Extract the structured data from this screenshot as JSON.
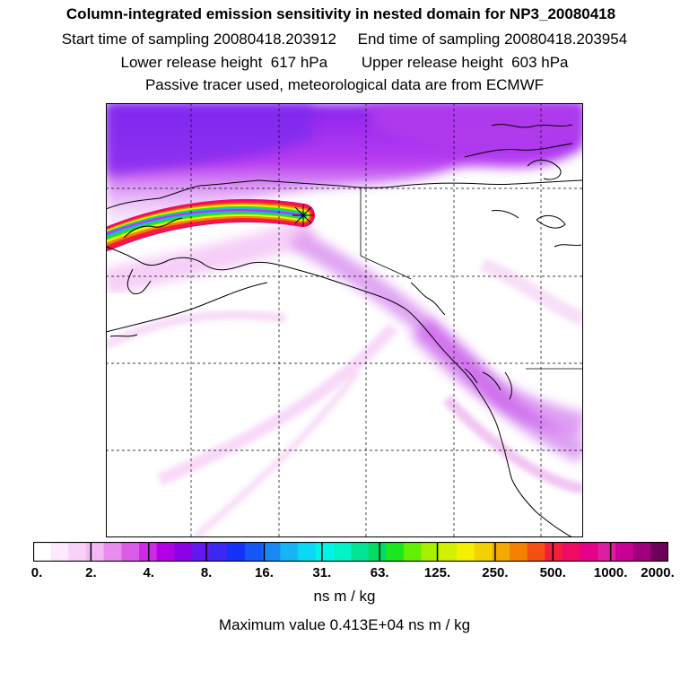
{
  "title": "Column-integrated emission sensitivity in nested domain for NP3_20080418",
  "line2": "Start time of sampling 20080418.203912     End time of sampling 20080418.203954",
  "line3": "Lower release height  617 hPa        Upper release height  603 hPa",
  "line4": "Passive tracer used, meteorological data are from ECMWF",
  "legend": {
    "colors": [
      "#ffffff",
      "#fde8fd",
      "#f9d2f9",
      "#f4b9f4",
      "#ea8cee",
      "#dc5cea",
      "#cc2ae6",
      "#b400e6",
      "#8c00e6",
      "#6418ee",
      "#3c28f4",
      "#1432f8",
      "#1458f8",
      "#1c88f4",
      "#18b4f4",
      "#0ad8f4",
      "#00f4e6",
      "#00f4c8",
      "#00e696",
      "#00dc64",
      "#1ee61e",
      "#64f000",
      "#a8f000",
      "#d2f000",
      "#f4f000",
      "#f4d200",
      "#f4aa00",
      "#f48200",
      "#f45014",
      "#f41e3c",
      "#f00a64",
      "#e6008c",
      "#dc1ea0",
      "#c80096",
      "#a0007d",
      "#6e005a"
    ],
    "ticks": [
      "0.",
      "2.",
      "4.",
      "8.",
      "16.",
      "31.",
      "63.",
      "125.",
      "250.",
      "500.",
      "1000.",
      "2000."
    ]
  },
  "units": "ns m / kg",
  "max_value": "Maximum value  0.413E+04 ns m / kg"
}
